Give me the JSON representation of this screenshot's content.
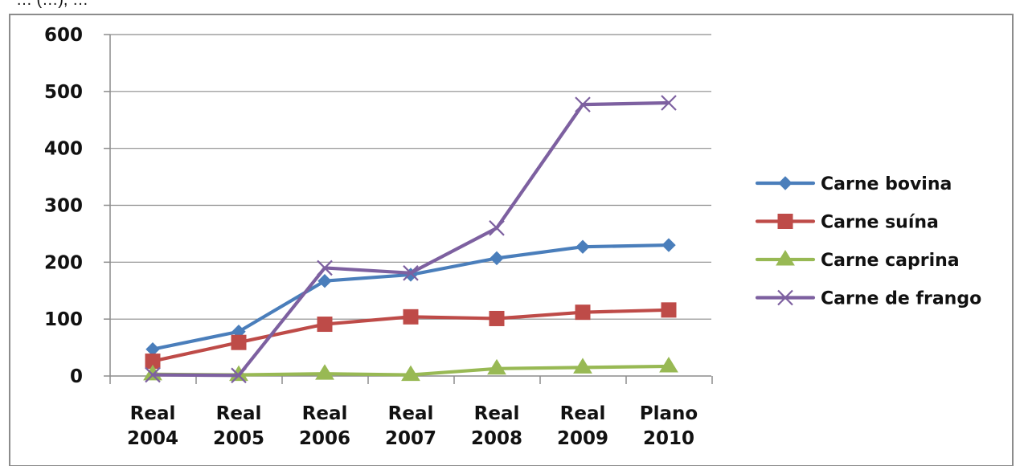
{
  "clipped_top_text": "… (…), …",
  "chart_data": {
    "type": "line",
    "categories": [
      [
        "Real",
        "2004"
      ],
      [
        "Real",
        "2005"
      ],
      [
        "Real",
        "2006"
      ],
      [
        "Real",
        "2007"
      ],
      [
        "Real",
        "2008"
      ],
      [
        "Real",
        "2009"
      ],
      [
        "Plano",
        "2010"
      ]
    ],
    "ylim": [
      0,
      600
    ],
    "yticks": [
      0,
      100,
      200,
      300,
      400,
      500,
      600
    ],
    "grid": true,
    "legend": "right",
    "series": [
      {
        "name": "Carne bovina",
        "color": "#4A7EBB",
        "marker": "diamond",
        "values": [
          47,
          78,
          167,
          178,
          207,
          227,
          230
        ]
      },
      {
        "name": "Carne suína",
        "color": "#BE4B48",
        "marker": "square",
        "values": [
          26,
          59,
          91,
          104,
          101,
          112,
          116
        ]
      },
      {
        "name": "Carne caprina",
        "color": "#98B954",
        "marker": "triangle",
        "values": [
          3,
          2,
          4,
          2,
          13,
          15,
          17
        ]
      },
      {
        "name": "Carne de frango",
        "color": "#7D60A0",
        "marker": "x",
        "values": [
          2,
          1,
          190,
          181,
          260,
          477,
          480
        ]
      }
    ]
  }
}
